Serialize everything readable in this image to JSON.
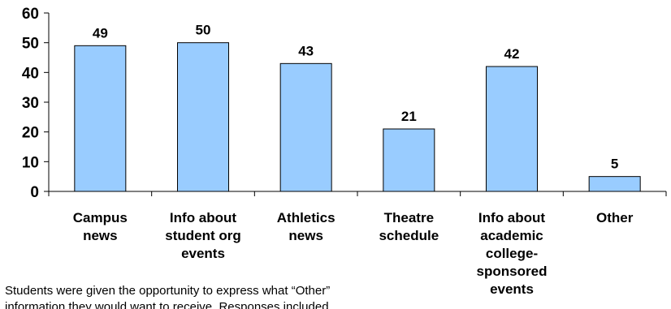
{
  "chart_data": {
    "type": "bar",
    "categories": [
      [
        "Campus",
        "news"
      ],
      [
        "Info about",
        "student org",
        "events"
      ],
      [
        "Athletics",
        "news"
      ],
      [
        "Theatre",
        "schedule"
      ],
      [
        "Info about",
        "academic",
        "college-",
        "sponsored",
        "events"
      ],
      [
        "Other"
      ]
    ],
    "values": [
      49,
      50,
      43,
      21,
      42,
      5
    ],
    "data_labels": [
      "49",
      "50",
      "43",
      "21",
      "42",
      "5"
    ],
    "yticks": [
      "0",
      "10",
      "20",
      "30",
      "40",
      "50",
      "60"
    ],
    "ylim": [
      0,
      60
    ],
    "grid": false,
    "bar_color": "#99ccff",
    "bar_edge_color": "#000000"
  },
  "footnote": {
    "line1": "Students were given the opportunity to express what “Other”",
    "line2": "information they would want to receive. Responses included"
  }
}
